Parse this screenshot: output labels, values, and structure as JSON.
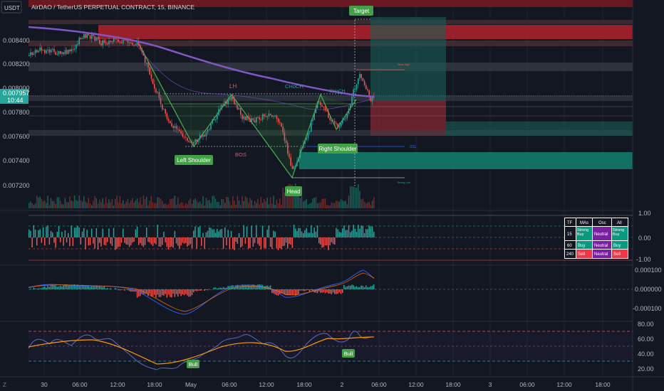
{
  "header": {
    "currency": "USDT",
    "symbol_line": "AirDAO / TetherUS PERPETUAL CONTRACT, 15, BINANCE"
  },
  "price_axis": {
    "labels": [
      "0.008400",
      "0.008200",
      "0.008000",
      "0.007800",
      "0.007600",
      "0.007400",
      "0.007200"
    ],
    "current_price": "0.007957",
    "countdown": "10:44"
  },
  "osc1_axis": [
    "1.00",
    "0.00",
    "-1.00"
  ],
  "osc2_axis": [
    "0.000100",
    "0.000000",
    "-0.000100"
  ],
  "rsi_axis": [
    "80.00",
    "60.00",
    "40.00",
    "20.00"
  ],
  "time_axis": [
    "30",
    "06:00",
    "12:00",
    "18:00",
    "May",
    "06:00",
    "12:00",
    "18:00",
    "2",
    "06:00",
    "12:00",
    "18:00",
    "3",
    "06:00",
    "12:00",
    "18:00"
  ],
  "annotations": {
    "target": "Target",
    "left_shoulder": "Left Shoulder",
    "head": "Head",
    "right_shoulder": "Right Shoulder",
    "lh": "LH",
    "choch1": "CHoCH",
    "choch2": "CHoCH",
    "bos": "BOS",
    "bull1": "Bull",
    "bull2": "Bull",
    "tiny_weak_high": "Weak High",
    "tiny_strong_low": "Strong Low",
    "tiny_ssl": "SSL"
  },
  "signal_table": {
    "headers": [
      "TF",
      "MAs",
      "Osc",
      "All"
    ],
    "rows": [
      {
        "tf": "15",
        "mas": "Strong Buy",
        "osc": "Neutral",
        "all": "Strong Buy"
      },
      {
        "tf": "60",
        "mas": "Buy",
        "osc": "Neutral",
        "all": "Buy"
      },
      {
        "tf": "240",
        "mas": "Sell",
        "osc": "Neutral",
        "all": "Sell"
      }
    ]
  },
  "colors": {
    "background": "#131722",
    "bull": "#26a69a",
    "bear": "#ef5350",
    "ma_purple": "#7e57c2",
    "pattern_green": "#4caf50",
    "label_green": "#43a047",
    "buy_teal": "#089981",
    "sell_red": "#f23645",
    "neutral_purple": "#7b1fa2"
  }
}
